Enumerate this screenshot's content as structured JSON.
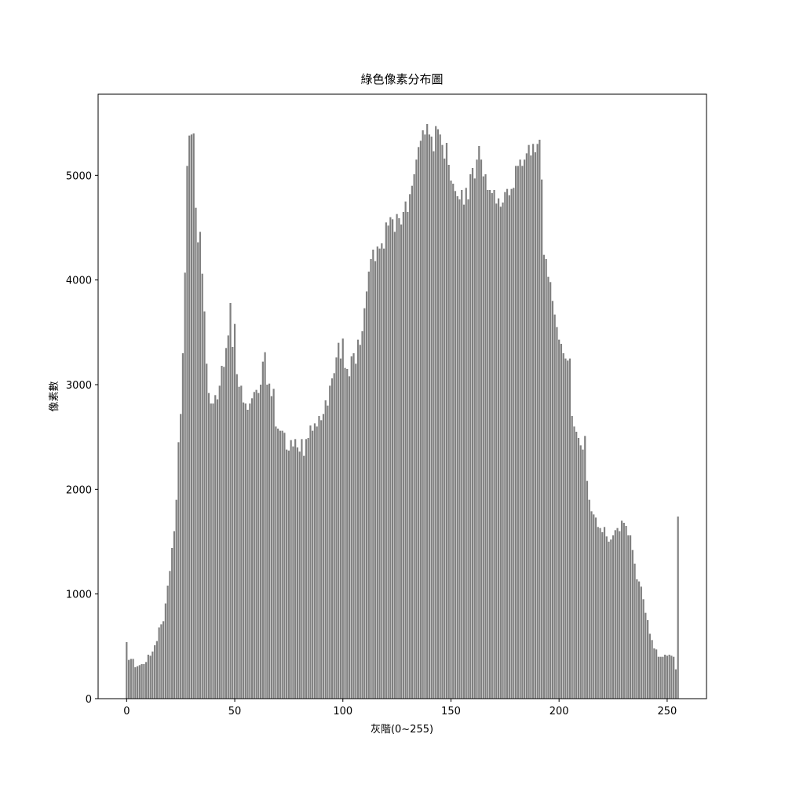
{
  "chart_data": {
    "type": "bar",
    "title": "綠色像素分布圖",
    "x_label": "灰階(0~255)",
    "y_label": "像素數",
    "color": "#808080",
    "x": [
      0,
      1,
      2,
      3,
      4,
      5,
      6,
      7,
      8,
      9,
      10,
      11,
      12,
      13,
      14,
      15,
      16,
      17,
      18,
      19,
      20,
      21,
      22,
      23,
      24,
      25,
      26,
      27,
      28,
      29,
      30,
      31,
      32,
      33,
      34,
      35,
      36,
      37,
      38,
      39,
      40,
      41,
      42,
      43,
      44,
      45,
      46,
      47,
      48,
      49,
      50,
      51,
      52,
      53,
      54,
      55,
      56,
      57,
      58,
      59,
      60,
      61,
      62,
      63,
      64,
      65,
      66,
      67,
      68,
      69,
      70,
      71,
      72,
      73,
      74,
      75,
      76,
      77,
      78,
      79,
      80,
      81,
      82,
      83,
      84,
      85,
      86,
      87,
      88,
      89,
      90,
      91,
      92,
      93,
      94,
      95,
      96,
      97,
      98,
      99,
      100,
      101,
      102,
      103,
      104,
      105,
      106,
      107,
      108,
      109,
      110,
      111,
      112,
      113,
      114,
      115,
      116,
      117,
      118,
      119,
      120,
      121,
      122,
      123,
      124,
      125,
      126,
      127,
      128,
      129,
      130,
      131,
      132,
      133,
      134,
      135,
      136,
      137,
      138,
      139,
      140,
      141,
      142,
      143,
      144,
      145,
      146,
      147,
      148,
      149,
      150,
      151,
      152,
      153,
      154,
      155,
      156,
      157,
      158,
      159,
      160,
      161,
      162,
      163,
      164,
      165,
      166,
      167,
      168,
      169,
      170,
      171,
      172,
      173,
      174,
      175,
      176,
      177,
      178,
      179,
      180,
      181,
      182,
      183,
      184,
      185,
      186,
      187,
      188,
      189,
      190,
      191,
      192,
      193,
      194,
      195,
      196,
      197,
      198,
      199,
      200,
      201,
      202,
      203,
      204,
      205,
      206,
      207,
      208,
      209,
      210,
      211,
      212,
      213,
      214,
      215,
      216,
      217,
      218,
      219,
      220,
      221,
      222,
      223,
      224,
      225,
      226,
      227,
      228,
      229,
      230,
      231,
      232,
      233,
      234,
      235,
      236,
      237,
      238,
      239,
      240,
      241,
      242,
      243,
      244,
      245,
      246,
      247,
      248,
      249,
      250,
      251,
      252,
      253,
      254,
      255
    ],
    "values": [
      540,
      370,
      380,
      380,
      300,
      310,
      320,
      330,
      330,
      350,
      420,
      410,
      450,
      510,
      550,
      680,
      710,
      740,
      910,
      1080,
      1220,
      1440,
      1600,
      1900,
      2450,
      2720,
      3300,
      4070,
      5090,
      5380,
      5390,
      5400,
      4690,
      4360,
      4460,
      4060,
      3700,
      3200,
      2920,
      2820,
      2820,
      2900,
      2860,
      2990,
      3180,
      3170,
      3350,
      3470,
      3780,
      3360,
      3580,
      3100,
      2980,
      2990,
      2830,
      2820,
      2760,
      2820,
      2870,
      2930,
      2950,
      2920,
      3000,
      3220,
      3310,
      3000,
      3010,
      2890,
      2960,
      2600,
      2580,
      2560,
      2560,
      2540,
      2380,
      2370,
      2470,
      2410,
      2480,
      2400,
      2360,
      2480,
      2320,
      2480,
      2490,
      2610,
      2560,
      2630,
      2600,
      2700,
      2660,
      2720,
      2850,
      2800,
      2990,
      3060,
      3110,
      3260,
      3400,
      3250,
      3440,
      3160,
      3150,
      3080,
      3270,
      3300,
      3200,
      3430,
      3380,
      3510,
      3730,
      3890,
      4080,
      4200,
      4290,
      4180,
      4320,
      4300,
      4350,
      4300,
      4550,
      4520,
      4600,
      4580,
      4460,
      4630,
      4590,
      4530,
      4650,
      4750,
      4650,
      4820,
      4900,
      5010,
      5150,
      5270,
      5330,
      5430,
      5390,
      5490,
      5390,
      5370,
      5230,
      5470,
      5440,
      5390,
      5290,
      5160,
      5310,
      5100,
      4950,
      4920,
      4850,
      4800,
      4770,
      4860,
      4720,
      4880,
      4770,
      5010,
      5070,
      4970,
      5150,
      5280,
      5150,
      4990,
      5010,
      4860,
      4860,
      4830,
      4860,
      4730,
      4780,
      4700,
      4740,
      4840,
      4870,
      4810,
      4870,
      4880,
      5090,
      5090,
      5150,
      5090,
      5150,
      5210,
      5290,
      5190,
      5300,
      5220,
      5300,
      5340,
      4960,
      4240,
      4200,
      4030,
      3980,
      3800,
      3670,
      3550,
      3430,
      3390,
      3300,
      3250,
      3230,
      3250,
      2700,
      2600,
      2550,
      2490,
      2420,
      2380,
      2510,
      2080,
      1900,
      1790,
      1760,
      1730,
      1640,
      1630,
      1590,
      1640,
      1550,
      1500,
      1520,
      1560,
      1610,
      1630,
      1600,
      1700,
      1680,
      1650,
      1560,
      1560,
      1420,
      1290,
      1140,
      1120,
      1070,
      950,
      820,
      750,
      620,
      560,
      480,
      470,
      400,
      400,
      400,
      420,
      410,
      420,
      410,
      400,
      280,
      1740
    ],
    "xlim": [
      -13.19,
      268.19
    ],
    "xticks": [
      0,
      50,
      100,
      150,
      200,
      250
    ],
    "ylim": [
      0,
      5775
    ],
    "yticks": [
      0,
      1000,
      2000,
      3000,
      4000,
      5000
    ]
  }
}
